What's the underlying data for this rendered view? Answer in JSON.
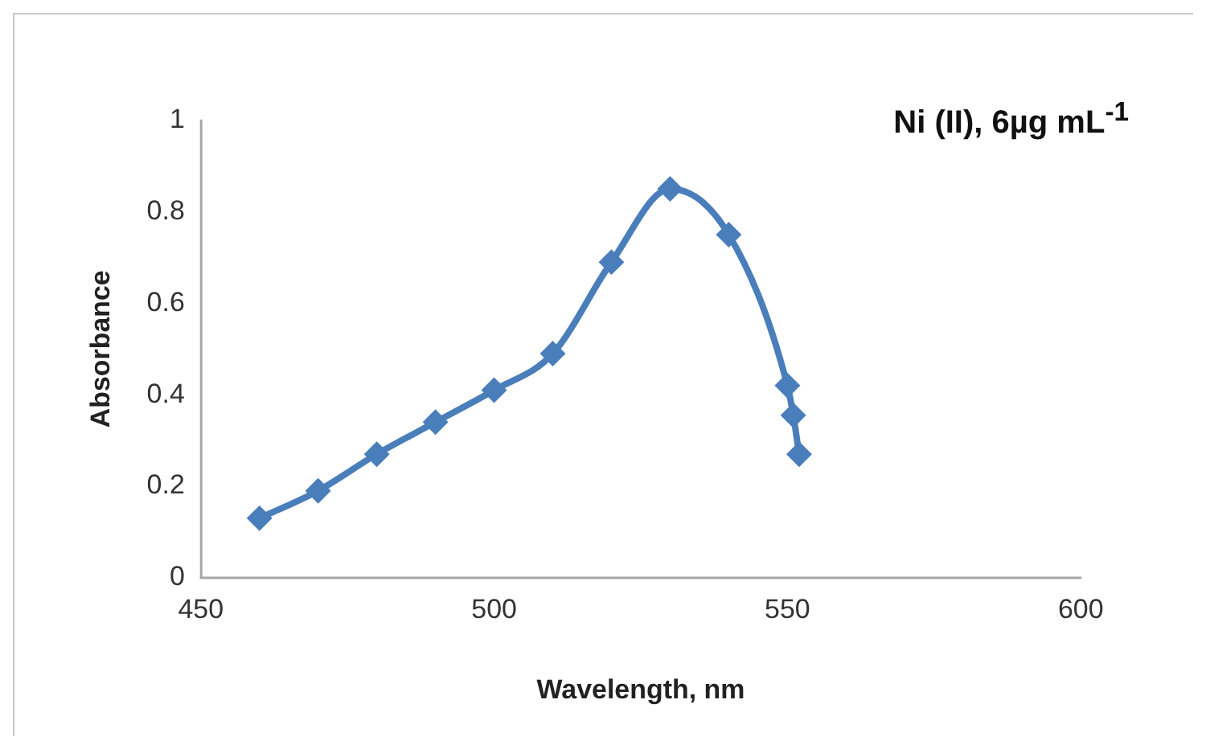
{
  "chart_data": {
    "type": "line",
    "title": "Ni (II), 6µg mL$^{-1}$",
    "xlabel": "Wavelength, nm",
    "ylabel": "Absorbance",
    "x": [
      460,
      470,
      480,
      490,
      500,
      510,
      520,
      530,
      540,
      550,
      551,
      552
    ],
    "series": [
      {
        "color": "#4a7ebb",
        "values": [
          0.13,
          0.19,
          0.27,
          0.34,
          0.41,
          0.49,
          0.69,
          0.85,
          0.75,
          0.42,
          0.355,
          0.27
        ]
      }
    ],
    "xlim": [
      450,
      600
    ],
    "xticks": [
      450,
      500,
      550,
      600
    ],
    "ylim": [
      0,
      1
    ],
    "yticks": [
      0,
      0.2,
      0.4,
      0.6,
      0.8,
      1
    ],
    "grid": false,
    "legend": false,
    "marker": "diamond",
    "line_style": "solid"
  }
}
